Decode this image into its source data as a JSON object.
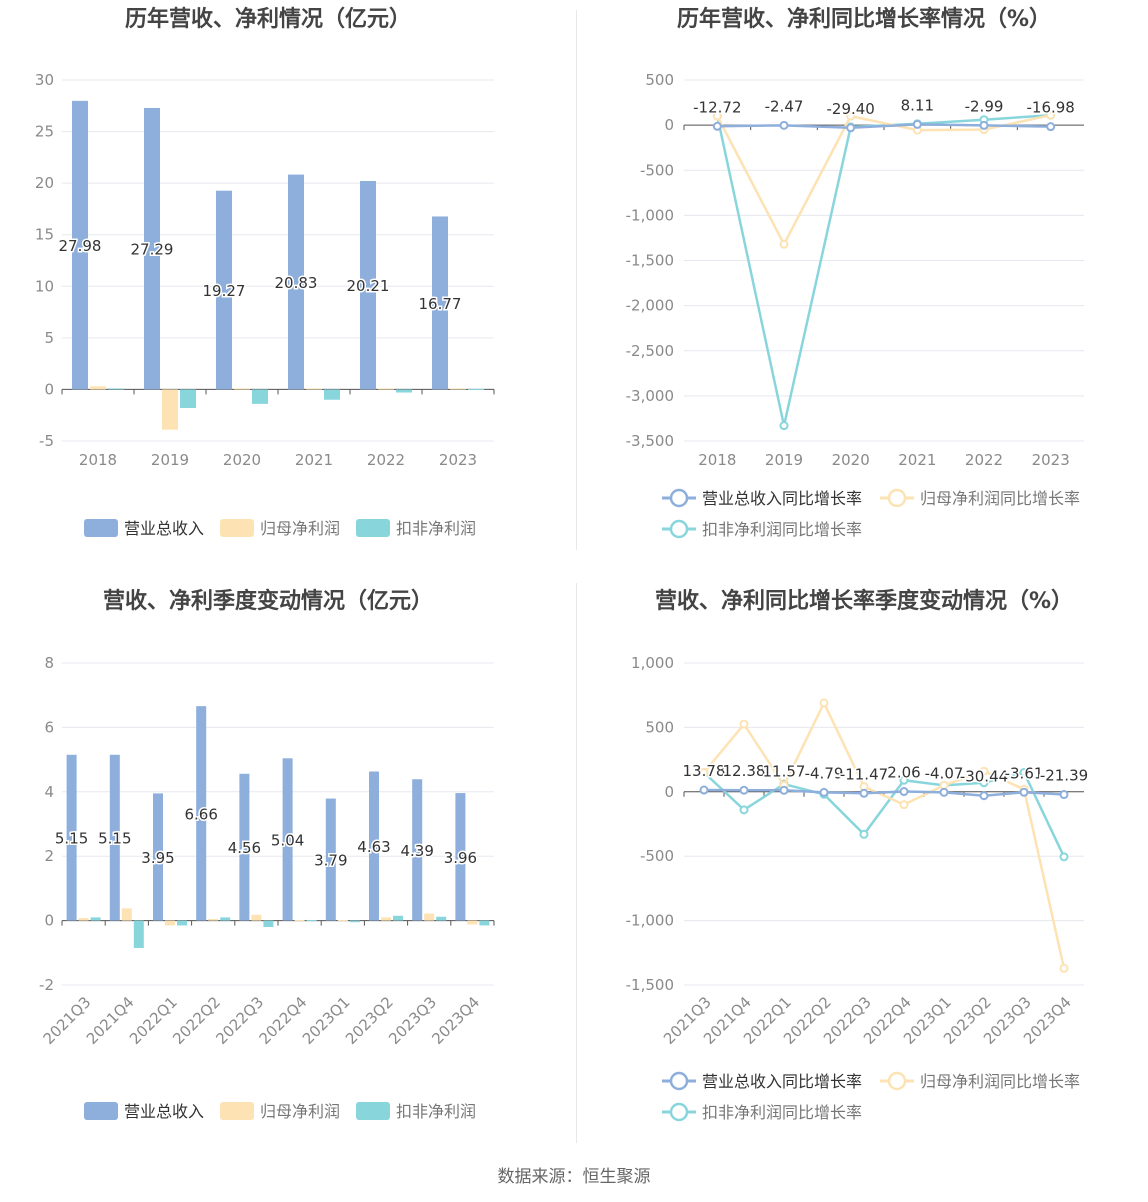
{
  "source_text": "数据来源：恒生聚源",
  "colors": {
    "revenue": "#8eaedc",
    "parent_profit": "#fde3b4",
    "nonrecurring_profit": "#88d6dc",
    "grid": "#e6e8ef",
    "axis_text": "#8a8a8a"
  },
  "chart_data": [
    {
      "type": "bar",
      "title": "历年营收、净利情况（亿元）",
      "categories": [
        "2018",
        "2019",
        "2020",
        "2021",
        "2022",
        "2023"
      ],
      "ylim": [
        -5,
        30
      ],
      "yticks": [
        -5,
        0,
        5,
        10,
        15,
        20,
        25,
        30
      ],
      "legend_position": "bottom",
      "series": [
        {
          "name": "营业总收入",
          "values": [
            27.98,
            27.29,
            19.27,
            20.83,
            20.21,
            16.77
          ],
          "labels": [
            "27.98",
            "27.29",
            "19.27",
            "20.83",
            "20.21",
            "16.77"
          ]
        },
        {
          "name": "归母净利润",
          "values": [
            0.3,
            -3.9,
            0.1,
            0.1,
            0.1,
            0.1
          ]
        },
        {
          "name": "扣非净利润",
          "values": [
            0.1,
            -1.8,
            -1.4,
            -1.0,
            -0.3,
            0.05
          ]
        }
      ]
    },
    {
      "type": "line",
      "title": "历年营收、净利同比增长率情况（%）",
      "categories": [
        "2018",
        "2019",
        "2020",
        "2021",
        "2022",
        "2023"
      ],
      "ylim": [
        -3500,
        500
      ],
      "yticks": [
        -3500,
        -3000,
        -2500,
        -2000,
        -1500,
        -1000,
        -500,
        0,
        500
      ],
      "ytick_labels": [
        "-3,500",
        "-3,000",
        "-2,500",
        "-2,000",
        "-1,500",
        "-1,000",
        "-500",
        "0",
        "500"
      ],
      "legend_position": "bottom",
      "series": [
        {
          "name": "营业总收入同比增长率",
          "values": [
            -12.72,
            -2.47,
            -29.4,
            8.11,
            -2.99,
            -16.98
          ],
          "labels": [
            "-12.72",
            "-2.47",
            "-29.40",
            "8.11",
            "-2.99",
            "-16.98"
          ]
        },
        {
          "name": "归母净利润同比增长率",
          "values": [
            100,
            -1320,
            100,
            -55,
            -50,
            110
          ]
        },
        {
          "name": "扣非净利润同比增长率",
          "values": [
            100,
            -3330,
            -20,
            15,
            60,
            110
          ]
        }
      ]
    },
    {
      "type": "bar",
      "title": "营收、净利季度变动情况（亿元）",
      "categories": [
        "2021Q3",
        "2021Q4",
        "2022Q1",
        "2022Q2",
        "2022Q3",
        "2022Q4",
        "2023Q1",
        "2023Q2",
        "2023Q3",
        "2023Q4"
      ],
      "ylim": [
        -2,
        8
      ],
      "yticks": [
        -2,
        0,
        2,
        4,
        6,
        8
      ],
      "legend_position": "bottom",
      "series": [
        {
          "name": "营业总收入",
          "values": [
            5.15,
            5.15,
            3.95,
            6.66,
            4.56,
            5.04,
            3.79,
            4.63,
            4.39,
            3.96
          ],
          "labels": [
            "5.15",
            "5.15",
            "3.95",
            "6.66",
            "4.56",
            "5.04",
            "3.79",
            "4.63",
            "4.39",
            "3.96"
          ]
        },
        {
          "name": "归母净利润",
          "values": [
            0.08,
            0.38,
            -0.15,
            0.05,
            0.18,
            0.02,
            0.02,
            0.1,
            0.22,
            -0.12
          ]
        },
        {
          "name": "扣非净利润",
          "values": [
            0.1,
            -0.85,
            -0.15,
            0.1,
            -0.2,
            0.02,
            -0.05,
            0.15,
            0.12,
            -0.15
          ]
        }
      ]
    },
    {
      "type": "line",
      "title": "营收、净利同比增长率季度变动情况（%）",
      "categories": [
        "2021Q3",
        "2021Q4",
        "2022Q1",
        "2022Q2",
        "2022Q3",
        "2022Q4",
        "2023Q1",
        "2023Q2",
        "2023Q3",
        "2023Q4"
      ],
      "ylim": [
        -1500,
        1000
      ],
      "yticks": [
        -1500,
        -1000,
        -500,
        0,
        500,
        1000
      ],
      "ytick_labels": [
        "-1,500",
        "-1,000",
        "-500",
        "0",
        "500",
        "1,000"
      ],
      "legend_position": "bottom",
      "series": [
        {
          "name": "营业总收入同比增长率",
          "values": [
            13.78,
            12.38,
            11.57,
            -4.79,
            -11.47,
            2.06,
            -4.07,
            -30.44,
            -3.61,
            -21.39
          ],
          "labels": [
            "13.78",
            "12.38",
            "11.57",
            "-4.79",
            "-11.47",
            "2.06",
            "-4.07",
            "-30.44",
            "-3.61",
            "-21.39"
          ]
        },
        {
          "name": "归母净利润同比增长率",
          "values": [
            150,
            525,
            50,
            690,
            40,
            -100,
            50,
            160,
            20,
            -1370
          ]
        },
        {
          "name": "扣非净利润同比增长率",
          "values": [
            150,
            -140,
            60,
            -20,
            -330,
            90,
            50,
            70,
            150,
            -505
          ]
        }
      ]
    }
  ]
}
